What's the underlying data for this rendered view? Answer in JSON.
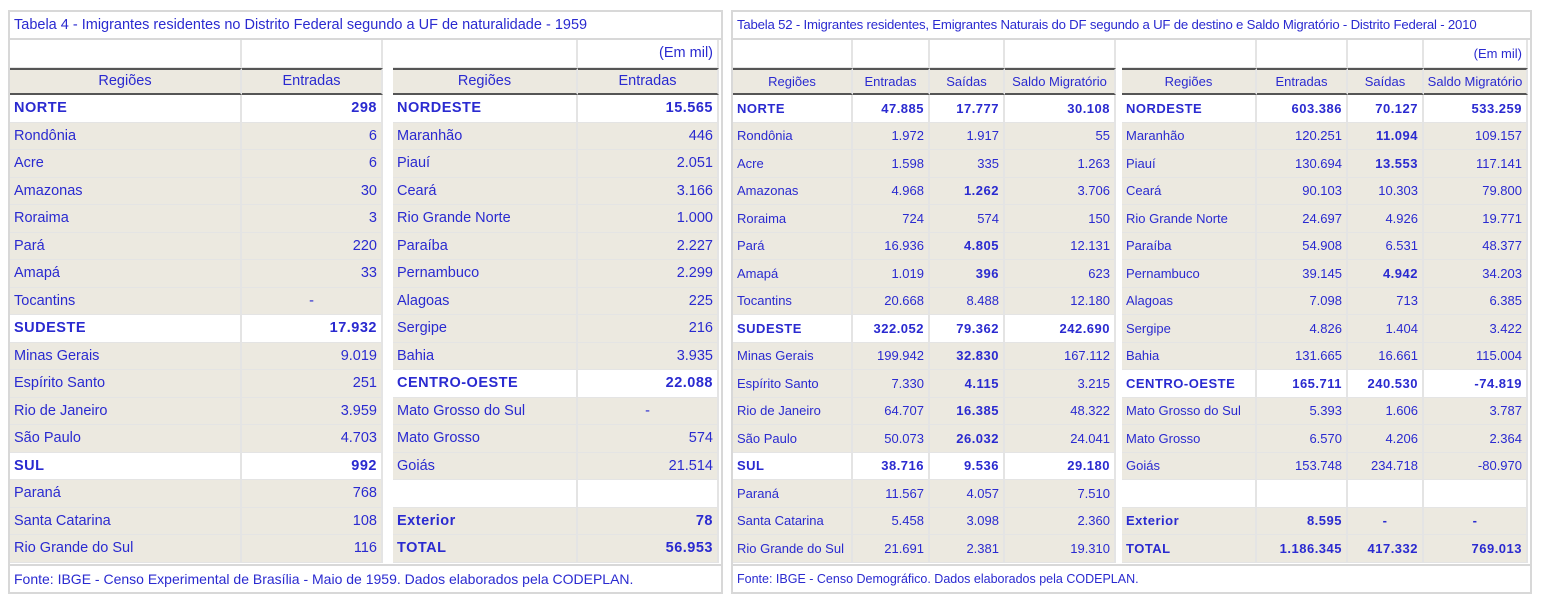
{
  "table1": {
    "title": "Tabela 4 - Imigrantes residentes no Distrito Federal segundo a UF de naturalidade - 1959",
    "unit": "(Em mil)",
    "headers": [
      "Regiões",
      "Entradas"
    ],
    "left": [
      {
        "name": "NORTE",
        "v": "298",
        "bold": true
      },
      {
        "name": "Rondônia",
        "v": "6"
      },
      {
        "name": "Acre",
        "v": "6"
      },
      {
        "name": "Amazonas",
        "v": "30"
      },
      {
        "name": "Roraima",
        "v": "3"
      },
      {
        "name": "Pará",
        "v": "220"
      },
      {
        "name": "Amapá",
        "v": "33"
      },
      {
        "name": "Tocantins",
        "v": "-",
        "dash": true
      },
      {
        "name": "SUDESTE",
        "v": "17.932",
        "bold": true
      },
      {
        "name": "Minas Gerais",
        "v": "9.019"
      },
      {
        "name": "Espírito Santo",
        "v": "251"
      },
      {
        "name": "Rio  de Janeiro",
        "v": "3.959"
      },
      {
        "name": "São Paulo",
        "v": "4.703"
      },
      {
        "name": "SUL",
        "v": "992",
        "bold": true
      },
      {
        "name": "Paraná",
        "v": "768"
      },
      {
        "name": "Santa  Catarina",
        "v": "108"
      },
      {
        "name": "Rio Grande do Sul",
        "v": "116"
      }
    ],
    "right": [
      {
        "name": "NORDESTE",
        "v": "15.565",
        "bold": true
      },
      {
        "name": "Maranhão",
        "v": "446"
      },
      {
        "name": "Piauí",
        "v": "2.051"
      },
      {
        "name": "Ceará",
        "v": "3.166"
      },
      {
        "name": "Rio Grande  Norte",
        "v": "1.000"
      },
      {
        "name": "Paraíba",
        "v": "2.227"
      },
      {
        "name": "Pernambuco",
        "v": "2.299"
      },
      {
        "name": "Alagoas",
        "v": "225"
      },
      {
        "name": "Sergipe",
        "v": "216"
      },
      {
        "name": "Bahia",
        "v": "3.935"
      },
      {
        "name": "CENTRO-OESTE",
        "v": "22.088",
        "bold": true
      },
      {
        "name": "Mato Grosso do Sul",
        "v": "-",
        "dash": true
      },
      {
        "name": "Mato Grosso",
        "v": "574"
      },
      {
        "name": "Goiás",
        "v": "21.514"
      },
      {
        "name": "",
        "v": "",
        "blank": true
      },
      {
        "name": "Exterior",
        "v": "78",
        "bold": true
      },
      {
        "name": "TOTAL",
        "v": "56.953",
        "bold": true
      }
    ],
    "footer": "Fonte: IBGE - Censo Experimental de Brasília - Maio de 1959. Dados elaborados pela CODEPLAN."
  },
  "table2": {
    "title": "Tabela  52 - Imigrantes residentes, Emigrantes Naturais  do DF segundo a UF de destino e Saldo Migratório - Distrito Federal - 2010",
    "unit": "(Em mil)",
    "headers": [
      "Regiões",
      "Entradas",
      "Saídas",
      "Saldo Migratório"
    ],
    "left": [
      {
        "name": "NORTE",
        "e": "47.885",
        "s": "17.777",
        "m": "30.108",
        "bold": true
      },
      {
        "name": "Rondônia",
        "e": "1.972",
        "s": "1.917",
        "m": "55"
      },
      {
        "name": "Acre",
        "e": "1.598",
        "s": "335",
        "m": "1.263"
      },
      {
        "name": "Amazonas",
        "e": "4.968",
        "s": "1.262",
        "m": "3.706",
        "sb": true
      },
      {
        "name": "Roraima",
        "e": "724",
        "s": "574",
        "m": "150"
      },
      {
        "name": "Pará",
        "e": "16.936",
        "s": "4.805",
        "m": "12.131",
        "sb": true
      },
      {
        "name": "Amapá",
        "e": "1.019",
        "s": "396",
        "m": "623",
        "sb": true
      },
      {
        "name": "Tocantins",
        "e": "20.668",
        "s": "8.488",
        "m": "12.180"
      },
      {
        "name": "SUDESTE",
        "e": "322.052",
        "s": "79.362",
        "m": "242.690",
        "bold": true
      },
      {
        "name": "Minas Gerais",
        "e": "199.942",
        "s": "32.830",
        "m": "167.112",
        "sb": true
      },
      {
        "name": "Espírito Santo",
        "e": "7.330",
        "s": "4.115",
        "m": "3.215",
        "sb": true
      },
      {
        "name": "Rio  de Janeiro",
        "e": "64.707",
        "s": "16.385",
        "m": "48.322",
        "sb": true
      },
      {
        "name": "São Paulo",
        "e": "50.073",
        "s": "26.032",
        "m": "24.041",
        "sb": true
      },
      {
        "name": "SUL",
        "e": "38.716",
        "s": "9.536",
        "m": "29.180",
        "bold": true
      },
      {
        "name": "Paraná",
        "e": "11.567",
        "s": "4.057",
        "m": "7.510"
      },
      {
        "name": "Santa  Catarina",
        "e": "5.458",
        "s": "3.098",
        "m": "2.360"
      },
      {
        "name": "Rio Grande do Sul",
        "e": "21.691",
        "s": "2.381",
        "m": "19.310"
      }
    ],
    "right": [
      {
        "name": "NORDESTE",
        "e": "603.386",
        "s": "70.127",
        "m": "533.259",
        "bold": true
      },
      {
        "name": "Maranhão",
        "e": "120.251",
        "s": "11.094",
        "m": "109.157",
        "sb": true
      },
      {
        "name": "Piauí",
        "e": "130.694",
        "s": "13.553",
        "m": "117.141",
        "sb": true
      },
      {
        "name": "Ceará",
        "e": "90.103",
        "s": "10.303",
        "m": "79.800"
      },
      {
        "name": "Rio Grande  Norte",
        "e": "24.697",
        "s": "4.926",
        "m": "19.771"
      },
      {
        "name": "Paraíba",
        "e": "54.908",
        "s": "6.531",
        "m": "48.377"
      },
      {
        "name": "Pernambuco",
        "e": "39.145",
        "s": "4.942",
        "m": "34.203",
        "sb": true
      },
      {
        "name": "Alagoas",
        "e": "7.098",
        "s": "713",
        "m": "6.385"
      },
      {
        "name": "Sergipe",
        "e": "4.826",
        "s": "1.404",
        "m": "3.422"
      },
      {
        "name": "Bahia",
        "e": "131.665",
        "s": "16.661",
        "m": "115.004"
      },
      {
        "name": "CENTRO-OESTE",
        "e": "165.711",
        "s": "240.530",
        "m": "-74.819",
        "bold": true
      },
      {
        "name": "Mato Grosso do Sul",
        "e": "5.393",
        "s": "1.606",
        "m": "3.787"
      },
      {
        "name": "Mato Grosso",
        "e": "6.570",
        "s": "4.206",
        "m": "2.364"
      },
      {
        "name": "Goiás",
        "e": "153.748",
        "s": "234.718",
        "m": "-80.970"
      },
      {
        "name": "",
        "e": "",
        "s": "",
        "m": "",
        "blank": true
      },
      {
        "name": "Exterior",
        "e": "8.595",
        "s": "-",
        "m": "-",
        "bold": true
      },
      {
        "name": "TOTAL",
        "e": "1.186.345",
        "s": "417.332",
        "m": "769.013",
        "bold": true
      }
    ],
    "footer": "Fonte: IBGE - Censo Demográfico. Dados elaborados pela CODEPLAN."
  }
}
